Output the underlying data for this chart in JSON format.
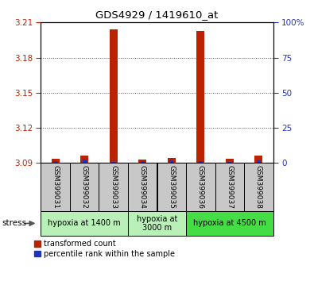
{
  "title": "GDS4929 / 1419610_at",
  "samples": [
    "GSM399031",
    "GSM399032",
    "GSM399033",
    "GSM399034",
    "GSM399035",
    "GSM399036",
    "GSM399037",
    "GSM399038"
  ],
  "red_values": [
    3.0935,
    3.096,
    3.204,
    3.0932,
    3.0945,
    3.203,
    3.0935,
    3.096
  ],
  "blue_values": [
    3.0918,
    3.0928,
    3.0912,
    3.0916,
    3.0922,
    3.0914,
    3.091,
    3.0924
  ],
  "ylim_min": 3.09,
  "ylim_max": 3.21,
  "yticks_left": [
    3.09,
    3.12,
    3.15,
    3.18,
    3.21
  ],
  "yticks_right": [
    0,
    25,
    50,
    75,
    100
  ],
  "group_defs": [
    {
      "start": 0,
      "end": 2,
      "label": "hypoxia at 1400 m",
      "color": "#b8f0b8"
    },
    {
      "start": 3,
      "end": 4,
      "label": "hypoxia at\n3000 m",
      "color": "#b8f0b8"
    },
    {
      "start": 5,
      "end": 7,
      "label": "hypoxia at 4500 m",
      "color": "#44dd44"
    }
  ],
  "red_color": "#bb2200",
  "blue_color": "#2233bb",
  "bg_color": "#c8c8c8",
  "legend_red": "transformed count",
  "legend_blue": "percentile rank within the sample",
  "stress_label": "stress"
}
